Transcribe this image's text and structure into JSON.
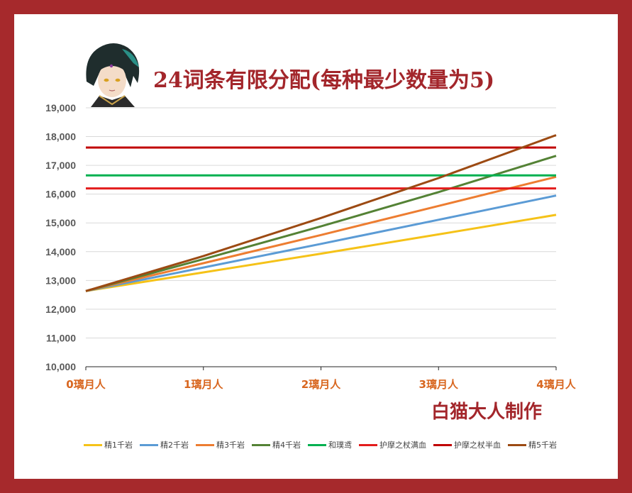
{
  "title": "24词条有限分配(每种最少数量为5)",
  "credit": "白猫大人制作",
  "chart_data": {
    "type": "line",
    "title": "24词条有限分配(每种最少数量为5)",
    "categories": [
      "0璃月人",
      "1璃月人",
      "2璃月人",
      "3璃月人",
      "4璃月人"
    ],
    "ylim": [
      10000,
      19000
    ],
    "yticks": [
      10000,
      11000,
      12000,
      13000,
      14000,
      15000,
      16000,
      17000,
      18000,
      19000
    ],
    "ytick_labels": [
      "10,000",
      "11,000",
      "12,000",
      "13,000",
      "14,000",
      "15,000",
      "16,000",
      "17,000",
      "18,000",
      "19,000"
    ],
    "grid": true,
    "legend_position": "bottom",
    "series": [
      {
        "name": "精1千岩",
        "color": "#f5c218",
        "values": [
          12630,
          13280,
          13930,
          14600,
          15280
        ]
      },
      {
        "name": "精2千岩",
        "color": "#5b9bd5",
        "values": [
          12630,
          13450,
          14270,
          15110,
          15950
        ]
      },
      {
        "name": "精3千岩",
        "color": "#ed7d31",
        "values": [
          12630,
          13600,
          14580,
          15590,
          16600
        ]
      },
      {
        "name": "精4千岩",
        "color": "#548235",
        "values": [
          12630,
          13740,
          14880,
          16070,
          17330
        ]
      },
      {
        "name": "和璞鸢",
        "color": "#00b050",
        "values": [
          16650,
          16650,
          16650,
          16650,
          16650
        ]
      },
      {
        "name": "护摩之杖满血",
        "color": "#e31c1c",
        "values": [
          16200,
          16200,
          16200,
          16200,
          16200
        ]
      },
      {
        "name": "护摩之杖半血",
        "color": "#c00000",
        "values": [
          17620,
          17620,
          17620,
          17620,
          17620
        ]
      },
      {
        "name": "精5千岩",
        "color": "#9c4a13",
        "values": [
          12630,
          13850,
          15170,
          16560,
          18050
        ]
      }
    ]
  }
}
